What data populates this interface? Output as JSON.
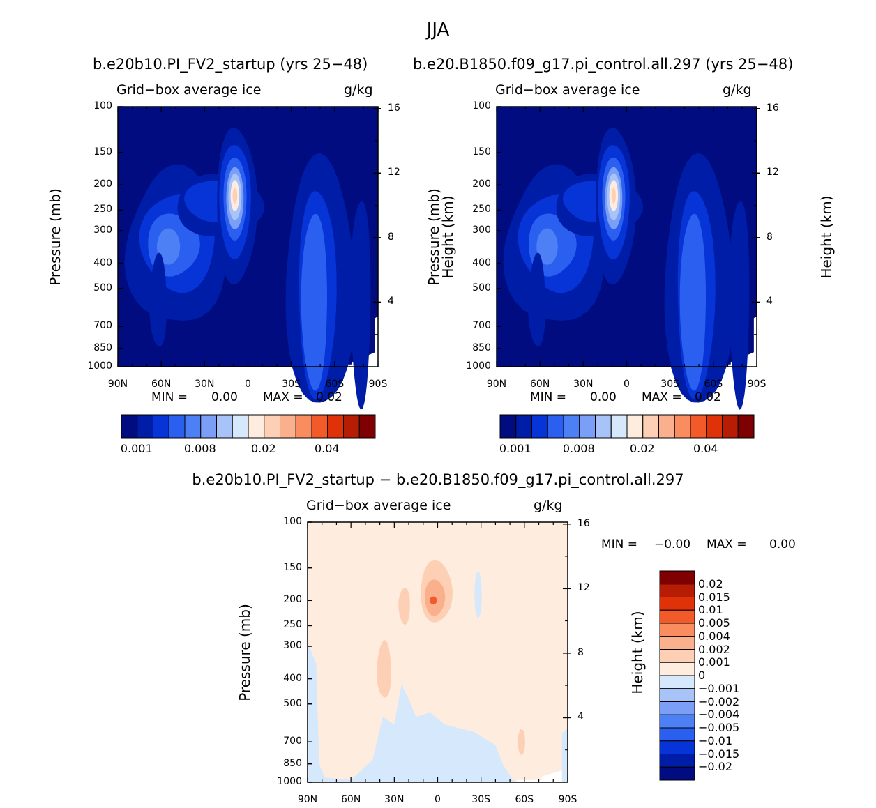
{
  "figure": {
    "title": "JJA",
    "difference_title": "b.e20b10.PI_FV2_startup − b.e20.B1850.f09_g17.pi_control.all.297"
  },
  "chart_data": [
    {
      "type": "heatmap",
      "panel": "left",
      "title": "b.e20b10.PI_FV2_startup (yrs 25−48)",
      "subtitle_left": "Grid−box average ice",
      "subtitle_right": "g/kg",
      "xlabel": "",
      "ylabel": "Pressure (mb)",
      "ylabel_right": "Height (km)",
      "x_ticks": [
        "90N",
        "60N",
        "30N",
        "0",
        "30S",
        "60S",
        "90S"
      ],
      "y_ticks": [
        "100",
        "150",
        "200",
        "250",
        "300",
        "400",
        "500",
        "700",
        "850",
        "1000"
      ],
      "y_right_ticks": [
        "16",
        "12",
        "8",
        "4"
      ],
      "min_label": "MIN =",
      "min_value": "0.00",
      "max_label": "MAX =",
      "max_value": "0.02",
      "colorbar_labels": [
        "0.001",
        "0.008",
        "0.02",
        "0.04"
      ],
      "colorbar_colors": [
        "#000c80",
        "#001da8",
        "#0634d6",
        "#2b5ff0",
        "#4e80f5",
        "#7b9ff7",
        "#a8c3f8",
        "#d6e8fc",
        "#feecdf",
        "#fdd0b6",
        "#fbb08d",
        "#f98d5f",
        "#f35a2a",
        "#df3208",
        "#b61d04",
        "#7f0000"
      ],
      "contour_levels": [
        0.0005,
        0.001,
        0.002,
        0.004,
        0.006,
        0.008,
        0.01,
        0.015
      ],
      "features": [
        {
          "name": "tropical upper-troposphere maximum",
          "lat": 10,
          "pressure_mb": 230,
          "value": 0.02
        },
        {
          "name": "northern hemisphere mid-latitude storm-track ice",
          "lat": 55,
          "pressure_mb": 350,
          "value": 0.006
        },
        {
          "name": "southern hemisphere mid-latitude ice",
          "lat": -45,
          "pressure_mb": 500,
          "value": 0.002
        }
      ]
    },
    {
      "type": "heatmap",
      "panel": "right",
      "title": "b.e20.B1850.f09_g17.pi_control.all.297 (yrs 25−48)",
      "subtitle_left": "Grid−box average ice",
      "subtitle_right": "g/kg",
      "xlabel": "",
      "ylabel": "Pressure (mb)",
      "ylabel_right": "Height (km)",
      "x_ticks": [
        "90N",
        "60N",
        "30N",
        "0",
        "30S",
        "60S",
        "90S"
      ],
      "y_ticks": [
        "100",
        "150",
        "200",
        "250",
        "300",
        "400",
        "500",
        "700",
        "850",
        "1000"
      ],
      "y_right_ticks": [
        "16",
        "12",
        "8",
        "4"
      ],
      "min_label": "MIN =",
      "min_value": "0.00",
      "max_label": "MAX =",
      "max_value": "0.02",
      "colorbar_labels": [
        "0.001",
        "0.008",
        "0.02",
        "0.04"
      ],
      "colorbar_colors": [
        "#000c80",
        "#001da8",
        "#0634d6",
        "#2b5ff0",
        "#4e80f5",
        "#7b9ff7",
        "#a8c3f8",
        "#d6e8fc",
        "#feecdf",
        "#fdd0b6",
        "#fbb08d",
        "#f98d5f",
        "#f35a2a",
        "#df3208",
        "#b61d04",
        "#7f0000"
      ],
      "contour_levels": [
        0.0005,
        0.001,
        0.002,
        0.004,
        0.006,
        0.008,
        0.01,
        0.015
      ],
      "features": [
        {
          "name": "tropical upper-troposphere maximum",
          "lat": 10,
          "pressure_mb": 230,
          "value": 0.018
        },
        {
          "name": "northern hemisphere mid-latitude storm-track ice",
          "lat": 55,
          "pressure_mb": 350,
          "value": 0.005
        },
        {
          "name": "southern hemisphere mid-latitude ice",
          "lat": -45,
          "pressure_mb": 500,
          "value": 0.002
        }
      ]
    },
    {
      "type": "heatmap",
      "panel": "difference",
      "title": "b.e20b10.PI_FV2_startup − b.e20.B1850.f09_g17.pi_control.all.297",
      "subtitle_left": "Grid−box average ice",
      "subtitle_right": "g/kg",
      "xlabel": "",
      "ylabel": "Pressure (mb)",
      "ylabel_right": "Height (km)",
      "x_ticks": [
        "90N",
        "60N",
        "30N",
        "0",
        "30S",
        "60S",
        "90S"
      ],
      "y_ticks": [
        "100",
        "150",
        "200",
        "250",
        "300",
        "400",
        "500",
        "700",
        "850",
        "1000"
      ],
      "y_right_ticks": [
        "16",
        "12",
        "8",
        "4"
      ],
      "min_label": "MIN =",
      "min_value": "−0.00",
      "max_label": "MAX =",
      "max_value": "0.00",
      "colorbar_labels": [
        "0.02",
        "0.015",
        "0.01",
        "0.005",
        "0.004",
        "0.002",
        "0.001",
        "0",
        "−0.001",
        "−0.002",
        "−0.004",
        "−0.005",
        "−0.01",
        "−0.015",
        "−0.02"
      ],
      "colorbar_colors": [
        "#7f0000",
        "#b61d04",
        "#df3208",
        "#f35a2a",
        "#f98d5f",
        "#fbb08d",
        "#fdd0b6",
        "#feecdf",
        "#d6e8fc",
        "#a8c3f8",
        "#7b9ff7",
        "#4e80f5",
        "#2b5ff0",
        "#0634d6",
        "#001da8",
        "#000c80"
      ],
      "features": [
        {
          "name": "tropical upper-troposphere positive anomaly",
          "lat": 5,
          "pressure_mb": 200,
          "value": 0.004
        },
        {
          "name": "northern subtropical positive anomaly",
          "lat": 40,
          "pressure_mb": 350,
          "value": 0.002
        },
        {
          "name": "broad weak positive background",
          "lat": 0,
          "pressure_mb": 500,
          "value": 0.0005
        },
        {
          "name": "lower troposphere weak negative region",
          "lat": 0,
          "pressure_mb": 800,
          "value": -0.0005
        }
      ]
    }
  ]
}
